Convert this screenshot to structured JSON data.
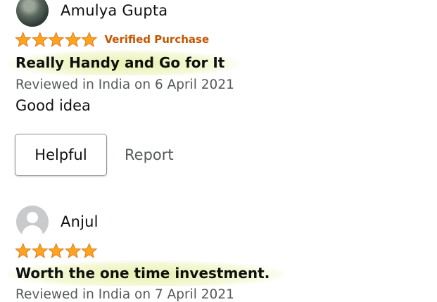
{
  "reviews": [
    {
      "reviewer": "Amulya Gupta",
      "avatar_icon": "profile-photo",
      "rating": 5,
      "verified": "Verified Purchase",
      "title": "Really Handy and Go for It",
      "meta": "Reviewed in India on 6 April 2021",
      "body": "Good idea",
      "helpful_label": "Helpful",
      "report_label": "Report"
    },
    {
      "reviewer": "Anjul",
      "avatar_icon": "default-user-icon",
      "rating": 5,
      "title": "Worth the one time investment.",
      "meta": "Reviewed in India on 7 April 2021"
    }
  ],
  "colors": {
    "star": "#ffa41c",
    "verified": "#c45500",
    "highlight": "#e6eea0"
  }
}
